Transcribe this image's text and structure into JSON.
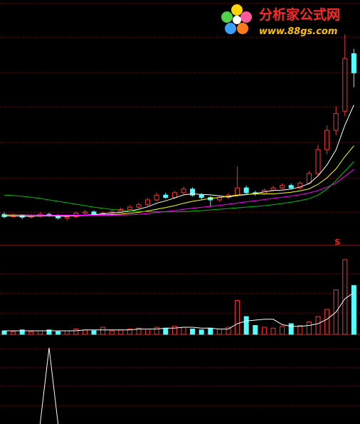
{
  "watermark": {
    "title": "分析家公式网",
    "url": "www.88gs.com"
  },
  "chart_data": [
    {
      "type": "candlestick",
      "signal_label": "S",
      "signal_color": "#ff2020",
      "signal_index": 37,
      "up_color": "#ff3232",
      "down_color": "#54ffff",
      "ylim": [
        0,
        100
      ],
      "open": [
        13,
        12,
        12.5,
        11.8,
        12.2,
        13,
        12.5,
        11.5,
        12,
        13.5,
        14,
        13,
        13.5,
        14,
        15,
        16,
        17,
        19,
        21,
        20,
        22,
        23.5,
        21,
        20,
        19,
        20,
        21,
        24,
        22,
        21.5,
        23,
        24,
        25,
        24,
        26,
        30,
        40,
        48,
        56,
        80
      ],
      "high": [
        13.8,
        13.2,
        13,
        12.8,
        13.8,
        13.6,
        13,
        12.8,
        14.2,
        14.8,
        14.6,
        14.2,
        14.6,
        15.8,
        16.8,
        17.8,
        19.8,
        22,
        22,
        22.8,
        24.5,
        24.2,
        21.8,
        20.6,
        20.8,
        21.8,
        33,
        25,
        22.8,
        23.8,
        24.8,
        25.8,
        25.8,
        26.8,
        31,
        42,
        50,
        58,
        88,
        82
      ],
      "low": [
        11.4,
        11.6,
        11,
        11.2,
        11.8,
        12,
        10.8,
        10.6,
        11.4,
        13,
        12.4,
        12.4,
        13,
        13.6,
        14.6,
        15.4,
        16.4,
        18.4,
        19.4,
        19.4,
        21.4,
        20.4,
        19.2,
        16,
        18.2,
        19.4,
        20.4,
        21.2,
        20.8,
        21,
        22.4,
        23.4,
        23.4,
        23.4,
        25.4,
        29,
        38,
        46,
        54,
        66
      ],
      "close": [
        12,
        12.5,
        11.8,
        12.2,
        13,
        12.5,
        11.5,
        12,
        13.5,
        14,
        13,
        13.5,
        14,
        15,
        16,
        17,
        19,
        21,
        20,
        22,
        23.5,
        21,
        20,
        19,
        20,
        21,
        24,
        22,
        21.5,
        23,
        24,
        25,
        24,
        26,
        30,
        40,
        48,
        55,
        78,
        72
      ],
      "series": [
        {
          "color": "#ffffff",
          "values": [
            12.3,
            12.3,
            12.2,
            12.2,
            12.3,
            12.4,
            12.2,
            12.2,
            12.5,
            12.7,
            12.8,
            13.2,
            13.6,
            13.8,
            14.3,
            15.1,
            16.1,
            17.6,
            18.6,
            19.8,
            21.1,
            21.5,
            21.3,
            21.1,
            20.7,
            20.2,
            20.8,
            21.2,
            21.7,
            22.3,
            22.9,
            23.1,
            23.5,
            24.4,
            25.8,
            29,
            33.6,
            39.8,
            50.2,
            58.6
          ]
        },
        {
          "color": "#ffff00",
          "values": [
            12.5,
            12.4,
            12.4,
            12.3,
            12.3,
            12.3,
            12.3,
            12.3,
            12.4,
            12.5,
            12.6,
            12.7,
            12.9,
            13.1,
            13.4,
            13.8,
            14.4,
            15.1,
            15.8,
            16.6,
            17.6,
            18.4,
            19,
            19.6,
            20,
            20.5,
            21,
            21.3,
            21.5,
            21.5,
            21.5,
            21.8,
            22.2,
            22.8,
            23.6,
            25.5,
            28.2,
            31.9,
            37.1,
            41.6
          ]
        },
        {
          "color": "#ff00ff",
          "values": [
            13,
            12.9,
            12.8,
            12.8,
            12.7,
            12.7,
            12.6,
            12.6,
            12.6,
            12.6,
            12.6,
            12.6,
            12.6,
            12.7,
            12.8,
            13,
            13.3,
            13.7,
            14.1,
            14.5,
            15.1,
            15.5,
            15.9,
            16.3,
            16.7,
            17.2,
            17.7,
            18.2,
            18.6,
            19.1,
            19.6,
            20.1,
            20.6,
            21.2,
            21.9,
            22.9,
            24.3,
            26,
            28.9,
            31.7
          ]
        },
        {
          "color": "#00c000",
          "values": [
            21,
            20.8,
            20.5,
            20.1,
            19.6,
            19,
            18.4,
            17.8,
            17.2,
            16.6,
            16,
            15.5,
            15,
            14.7,
            14.4,
            14.2,
            14.1,
            14,
            14,
            14,
            14.1,
            14.3,
            14.5,
            14.8,
            15.1,
            15.4,
            15.7,
            16,
            16.3,
            16.6,
            17,
            17.5,
            18,
            18.7,
            19.5,
            21,
            23.5,
            27,
            31,
            35
          ]
        }
      ]
    },
    {
      "type": "bar",
      "ylim": [
        0,
        100
      ],
      "values": [
        4,
        3,
        5,
        3,
        4,
        5,
        3,
        4,
        6,
        5,
        4,
        8,
        4,
        5,
        6,
        7,
        6,
        8,
        7,
        9,
        8,
        6,
        5,
        7,
        6,
        8,
        38,
        20,
        10,
        8,
        7,
        9,
        12,
        10,
        14,
        20,
        28,
        50,
        84,
        55
      ],
      "series": [
        {
          "color": "#ffffff",
          "values": [
            4,
            4,
            4,
            4,
            4,
            4,
            4,
            4,
            4,
            5,
            5,
            5,
            5,
            5,
            5,
            6,
            6,
            6,
            7,
            7,
            8,
            8,
            7,
            7,
            6,
            6,
            12,
            15,
            16,
            17,
            17,
            11,
            9,
            9,
            10,
            12,
            17,
            25,
            40,
            47
          ]
        }
      ]
    },
    {
      "type": "line",
      "ylim": [
        0,
        100
      ],
      "series": [
        {
          "color": "#ffffff",
          "values": [
            null,
            null,
            null,
            null,
            0,
            85,
            0,
            null,
            null,
            null,
            null,
            null,
            null,
            null,
            null,
            null,
            null,
            null,
            null,
            null,
            null,
            null,
            null,
            null,
            null,
            null,
            null,
            null,
            null,
            null,
            null,
            null,
            null,
            null,
            null,
            null,
            null,
            null,
            null,
            null
          ]
        }
      ]
    }
  ]
}
